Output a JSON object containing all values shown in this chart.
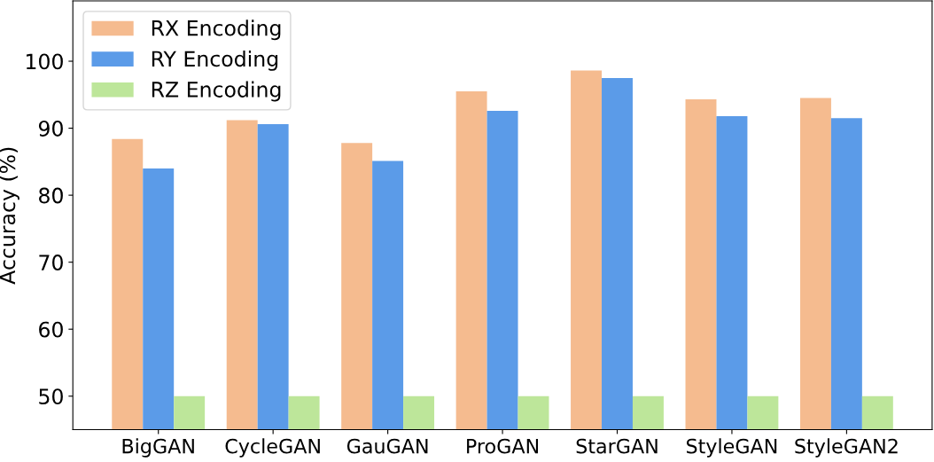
{
  "chart_data": {
    "type": "bar",
    "ylabel": "Accuracy (%)",
    "categories": [
      "BigGAN",
      "CycleGAN",
      "GauGAN",
      "ProGAN",
      "StarGAN",
      "StyleGAN",
      "StyleGAN2"
    ],
    "series": [
      {
        "name": "RX Encoding",
        "color": "#f5bb8f",
        "values": [
          88.4,
          91.2,
          87.8,
          95.5,
          98.6,
          94.3,
          94.5
        ]
      },
      {
        "name": "RY Encoding",
        "color": "#5b9be8",
        "values": [
          84.0,
          90.6,
          85.1,
          92.6,
          97.5,
          91.8,
          91.5
        ]
      },
      {
        "name": "RZ Encoding",
        "color": "#bde69a",
        "values": [
          50,
          50,
          50,
          50,
          50,
          50,
          50
        ]
      }
    ],
    "ylim": [
      45,
      109
    ],
    "yticks": [
      50,
      60,
      70,
      80,
      90,
      100
    ],
    "legend": "top left",
    "grid": false
  }
}
